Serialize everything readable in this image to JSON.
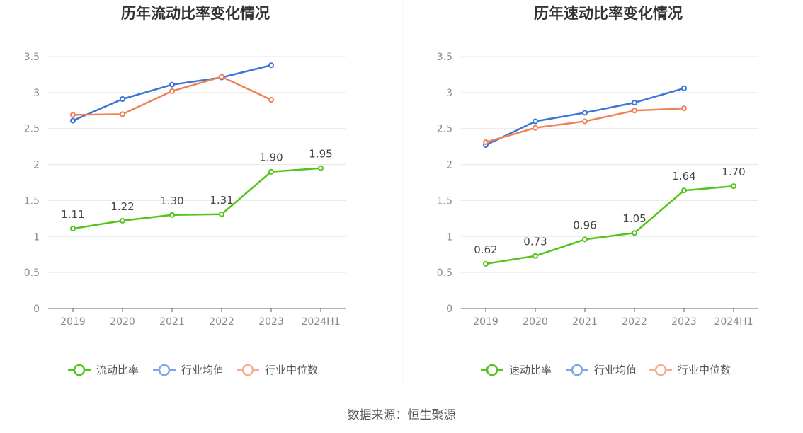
{
  "source": "数据来源：恒生聚源",
  "chart_data": [
    {
      "type": "line",
      "title": "历年流动比率变化情况",
      "categories": [
        "2019",
        "2020",
        "2021",
        "2022",
        "2023",
        "2024H1"
      ],
      "ylim": [
        0,
        3.5
      ],
      "yticks": [
        "0",
        "0.5",
        "1",
        "1.5",
        "2",
        "2.5",
        "3",
        "3.5"
      ],
      "grid": true,
      "legend_position": "bottom",
      "series": [
        {
          "name": "流动比率",
          "color": "#52c41a",
          "values": [
            1.11,
            1.22,
            1.3,
            1.31,
            1.9,
            1.95
          ],
          "labels": [
            "1.11",
            "1.22",
            "1.30",
            "1.31",
            "1.90",
            "1.95"
          ]
        },
        {
          "name": "行业均值",
          "color": "#3a75d8",
          "values": [
            2.61,
            2.91,
            3.11,
            3.21,
            3.38,
            null
          ]
        },
        {
          "name": "行业中位数",
          "color": "#f08257",
          "values": [
            2.69,
            2.7,
            3.02,
            3.22,
            2.9,
            null
          ]
        }
      ]
    },
    {
      "type": "line",
      "title": "历年速动比率变化情况",
      "categories": [
        "2019",
        "2020",
        "2021",
        "2022",
        "2023",
        "2024H1"
      ],
      "ylim": [
        0,
        3.5
      ],
      "yticks": [
        "0",
        "0.5",
        "1",
        "1.5",
        "2",
        "2.5",
        "3",
        "3.5"
      ],
      "grid": true,
      "legend_position": "bottom",
      "series": [
        {
          "name": "速动比率",
          "color": "#52c41a",
          "values": [
            0.62,
            0.73,
            0.96,
            1.05,
            1.64,
            1.7
          ],
          "labels": [
            "0.62",
            "0.73",
            "0.96",
            "1.05",
            "1.64",
            "1.70"
          ]
        },
        {
          "name": "行业均值",
          "color": "#3a75d8",
          "values": [
            2.27,
            2.6,
            2.72,
            2.86,
            3.06,
            null
          ]
        },
        {
          "name": "行业中位数",
          "color": "#f08257",
          "values": [
            2.31,
            2.51,
            2.6,
            2.75,
            2.78,
            null
          ]
        }
      ]
    }
  ]
}
